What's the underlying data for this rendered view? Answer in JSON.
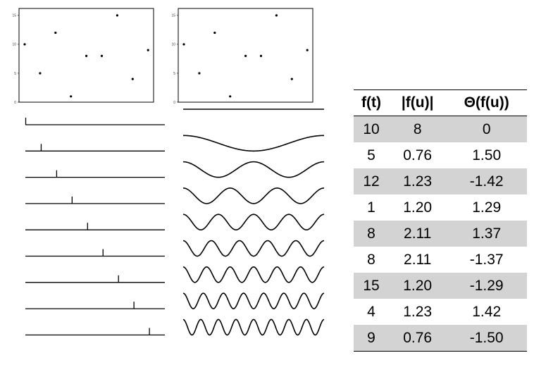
{
  "scatter_plots": [
    {
      "y_ticks": [
        "15",
        "10",
        "5",
        "0"
      ],
      "points": [
        [
          0,
          10
        ],
        [
          1,
          5
        ],
        [
          2,
          12
        ],
        [
          3,
          1
        ],
        [
          4,
          8
        ],
        [
          5,
          8
        ],
        [
          6,
          15
        ],
        [
          7,
          4
        ],
        [
          8,
          9
        ]
      ]
    },
    {
      "y_ticks": [
        "15",
        "10",
        "5",
        "0"
      ],
      "points": [
        [
          0,
          10
        ],
        [
          1,
          5
        ],
        [
          2,
          12
        ],
        [
          3,
          1
        ],
        [
          4,
          8
        ],
        [
          5,
          8
        ],
        [
          6,
          15
        ],
        [
          7,
          4
        ],
        [
          8,
          9
        ]
      ]
    }
  ],
  "basis": {
    "impulse_positions": [
      0,
      1,
      2,
      3,
      4,
      5,
      6,
      7,
      8
    ],
    "wave_cycles": [
      0,
      1,
      2,
      3,
      4,
      5,
      6,
      7,
      8
    ]
  },
  "table": {
    "headers": [
      "f(t)",
      "|f(u)|",
      "Θ(f(u))"
    ],
    "rows": [
      [
        "10",
        "8",
        "0"
      ],
      [
        "5",
        "0.76",
        "1.50"
      ],
      [
        "12",
        "1.23",
        "-1.42"
      ],
      [
        "1",
        "1.20",
        "1.29"
      ],
      [
        "8",
        "2.11",
        "1.37"
      ],
      [
        "8",
        "2.11",
        "-1.37"
      ],
      [
        "15",
        "1.20",
        "-1.29"
      ],
      [
        "4",
        "1.23",
        "1.42"
      ],
      [
        "9",
        "0.76",
        "-1.50"
      ]
    ],
    "shaded_rows": [
      0,
      2,
      4,
      6,
      8
    ]
  }
}
